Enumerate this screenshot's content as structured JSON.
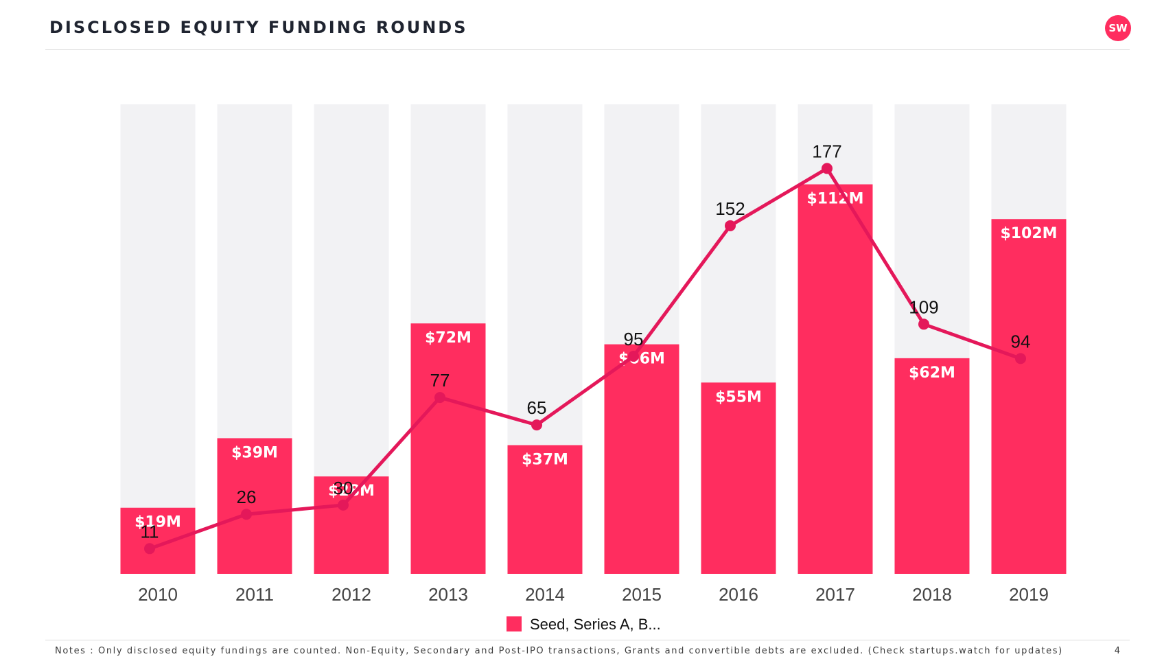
{
  "header": {
    "title": "DISCLOSED EQUITY FUNDING ROUNDS",
    "logo_text": "SW"
  },
  "chart_data": {
    "type": "bar",
    "categories": [
      "2010",
      "2011",
      "2012",
      "2013",
      "2014",
      "2015",
      "2016",
      "2017",
      "2018",
      "2019"
    ],
    "series": [
      {
        "name": "Seed, Series A, B...",
        "type": "bar",
        "unit": "$M",
        "values": [
          19,
          39,
          28,
          72,
          37,
          66,
          55,
          112,
          62,
          102
        ],
        "labels": [
          "$19M",
          "$39M",
          "$28M",
          "$72M",
          "$37M",
          "$66M",
          "$55M",
          "$112M",
          "$62M",
          "$102M"
        ]
      },
      {
        "type": "line",
        "values": [
          11,
          26,
          30,
          77,
          65,
          95,
          152,
          177,
          109,
          94
        ]
      }
    ],
    "ylim_bars": [
      0,
      135
    ],
    "ylim_line": [
      0,
      205
    ],
    "legend": "bottom-center",
    "grid": false,
    "colors": {
      "bar": "#ff2d5f",
      "bar_background": "#f2f2f4",
      "line": "#e4185a"
    }
  },
  "footer": {
    "notes": "Notes : Only disclosed equity fundings are counted. Non-Equity, Secondary and Post-IPO transactions, Grants and convertible debts are excluded. (Check startups.watch for updates)",
    "page_number": "4"
  }
}
